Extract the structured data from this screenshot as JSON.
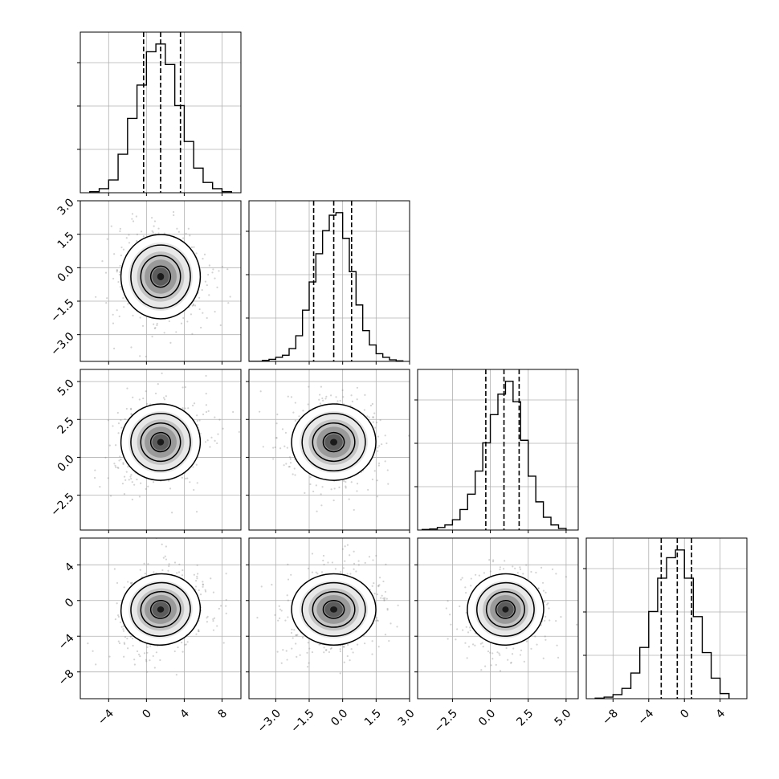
{
  "chart_data": {
    "type": "corner",
    "grid": true,
    "parameters": [
      {
        "range": [
          -7,
          10
        ],
        "ticks": [
          "−4",
          "0",
          "4",
          "8"
        ],
        "tick_values": [
          -4,
          0,
          4,
          8
        ],
        "quantiles": [
          -0.3,
          1.5,
          3.6
        ],
        "hist_edges": [
          -6,
          -5,
          -4,
          -3,
          -2,
          -1,
          0,
          1,
          2,
          3,
          4,
          5,
          6,
          7,
          8,
          9
        ],
        "hist_counts": [
          2,
          8,
          25,
          75,
          145,
          210,
          275,
          290,
          250,
          170,
          100,
          48,
          20,
          8,
          2
        ],
        "center2d": 1.5,
        "sigma": 2.0
      },
      {
        "range": [
          -4.2,
          3.0
        ],
        "ticks": [
          "−3.0",
          "−1.5",
          "0.0",
          "1.5",
          "3.0"
        ],
        "tick_values": [
          -3.0,
          -1.5,
          0.0,
          1.5,
          3.0
        ],
        "quantiles": [
          -1.3,
          -0.4,
          0.4
        ],
        "hist_edges": [
          -4.2,
          -3.9,
          -3.6,
          -3.3,
          -3.0,
          -2.7,
          -2.4,
          -2.1,
          -1.8,
          -1.5,
          -1.2,
          -0.9,
          -0.6,
          -0.3,
          0.0,
          0.3,
          0.6,
          0.9,
          1.2,
          1.5,
          1.8,
          2.1,
          2.4,
          2.7
        ],
        "hist_counts": [
          0,
          0,
          2,
          4,
          8,
          12,
          25,
          50,
          100,
          155,
          210,
          255,
          285,
          290,
          240,
          175,
          110,
          60,
          32,
          15,
          8,
          3,
          1
        ],
        "center2d": -0.4,
        "sigma": 0.9
      },
      {
        "range": [
          -4.8,
          5.8
        ],
        "ticks": [
          "−2.5",
          "0.0",
          "2.5",
          "5.0"
        ],
        "tick_values": [
          -2.5,
          0.0,
          2.5,
          5.0
        ],
        "quantiles": [
          -0.3,
          0.9,
          1.9
        ],
        "hist_edges": [
          -4.5,
          -4.0,
          -3.5,
          -3.0,
          -2.5,
          -2.0,
          -1.5,
          -1.0,
          -0.5,
          0.0,
          0.5,
          1.0,
          1.5,
          2.0,
          2.5,
          3.0,
          3.5,
          4.0,
          4.5,
          5.0
        ],
        "hist_counts": [
          1,
          2,
          5,
          10,
          20,
          40,
          70,
          115,
          170,
          225,
          265,
          290,
          250,
          175,
          105,
          55,
          25,
          10,
          3
        ],
        "center2d": 1.0,
        "sigma": 1.2
      },
      {
        "range": [
          -11,
          7
        ],
        "ticks": [
          "−8",
          "−4",
          "0",
          "4"
        ],
        "tick_values": [
          -8,
          -4,
          0,
          4
        ],
        "quantiles": [
          -2.6,
          -0.8,
          0.8
        ],
        "hist_edges": [
          -10,
          -9,
          -8,
          -7,
          -6,
          -5,
          -4,
          -3,
          -2,
          -1,
          0,
          1,
          2,
          3,
          4,
          5
        ],
        "hist_counts": [
          1,
          3,
          8,
          20,
          50,
          100,
          170,
          235,
          275,
          290,
          235,
          160,
          90,
          40,
          10
        ],
        "center2d": -1.0,
        "sigma": 1.9
      }
    ],
    "row_ticks": [
      null,
      {
        "labels": [
          "3.0",
          "1.5",
          "0.0",
          "−1.5",
          "−3.0"
        ],
        "values": [
          3.0,
          1.5,
          0.0,
          -1.5,
          -3.0
        ]
      },
      {
        "labels": [
          "5.0",
          "2.5",
          "0.0",
          "−2.5"
        ],
        "values": [
          5.0,
          2.5,
          0.0,
          -2.5
        ]
      },
      {
        "labels": [
          "4",
          "0",
          "−4",
          "−8"
        ],
        "values": [
          4,
          0,
          -4,
          -8
        ]
      }
    ],
    "correlations": {
      "1-0": -0.05,
      "2-0": 0.15,
      "2-1": 0.05,
      "3-0": 0.2,
      "3-1": 0.0,
      "3-2": 0.1
    },
    "contour_levels_sigma": [
      0.5,
      1.0,
      1.5,
      2.0
    ],
    "colors": {
      "line": "#000000",
      "grid": "#b0b0b0",
      "points": "#808080",
      "spine": "#000000"
    }
  }
}
